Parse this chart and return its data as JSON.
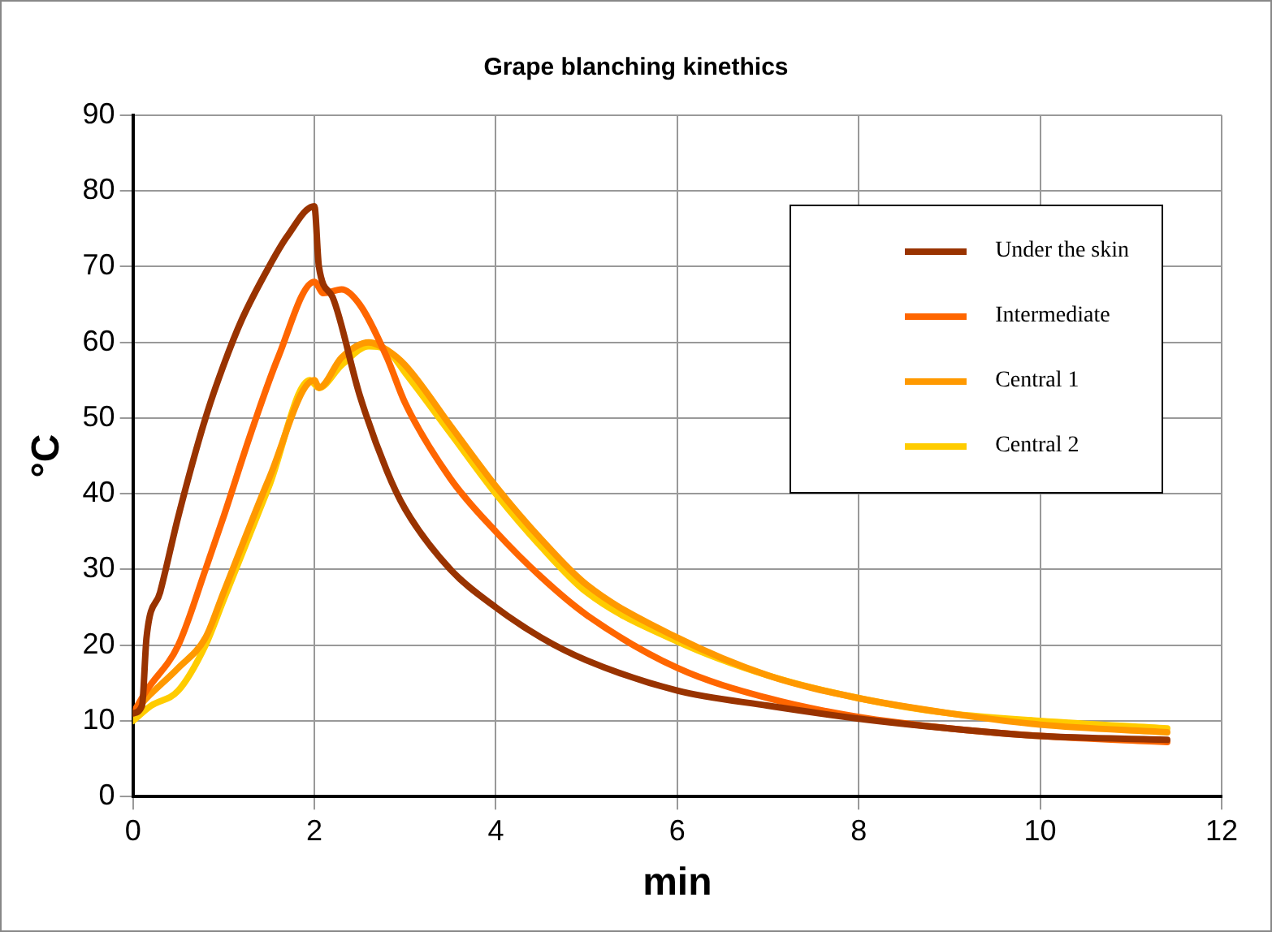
{
  "chart_data": {
    "type": "line",
    "title": "Grape blanching kinethics",
    "xlabel": "min",
    "ylabel": "°C",
    "xlim": [
      0,
      12
    ],
    "xticks": [
      0,
      2,
      4,
      6,
      8,
      10,
      12
    ],
    "ylim": [
      0,
      90
    ],
    "yticks": [
      0,
      10,
      20,
      30,
      40,
      50,
      60,
      70,
      80,
      90
    ],
    "grid": true,
    "legend": "top right",
    "marker": "none",
    "line_style": "solid",
    "series": [
      {
        "name": "Under the skin",
        "color": "#993300",
        "x": [
          0,
          0.1,
          0.15,
          0.3,
          0.5,
          0.8,
          1.0,
          1.2,
          1.5,
          1.7,
          2.0,
          2.05,
          2.2,
          2.5,
          2.8,
          3.0,
          3.5,
          4,
          4.5,
          5,
          6,
          7,
          8,
          9,
          10,
          11.4
        ],
        "values": [
          11,
          12,
          21,
          27,
          37,
          50,
          57,
          63,
          70,
          74,
          78,
          70,
          66,
          53,
          43,
          38,
          30,
          25,
          21,
          18,
          14,
          12,
          10.3,
          9,
          8,
          7.5
        ]
      },
      {
        "name": "Intermediate",
        "color": "#ff6600",
        "x": [
          0,
          0.15,
          0.5,
          0.8,
          1.0,
          1.3,
          1.6,
          2.0,
          2.1,
          2.3,
          2.5,
          2.8,
          3.0,
          3.5,
          4,
          4.5,
          5,
          6,
          7,
          8,
          9,
          10,
          11.4
        ],
        "values": [
          11,
          14,
          20,
          30,
          37,
          48,
          58,
          68,
          66.5,
          67,
          65,
          58,
          52,
          42,
          35,
          29,
          24,
          17,
          13,
          10.5,
          9,
          8,
          7.2
        ]
      },
      {
        "name": "Central 1",
        "color": "#ff9900",
        "x": [
          0,
          0.15,
          0.5,
          0.8,
          1.0,
          1.5,
          2.0,
          2.05,
          2.3,
          2.6,
          2.8,
          3.0,
          3.5,
          4,
          4.5,
          5,
          6,
          7,
          8,
          9,
          10,
          11.4
        ],
        "values": [
          11,
          13,
          17,
          21,
          27,
          42,
          55,
          54,
          58,
          60,
          59,
          57,
          49,
          41,
          34,
          28,
          21,
          16,
          13,
          11,
          9.5,
          8.5
        ]
      },
      {
        "name": "Central 2",
        "color": "#ffcc00",
        "x": [
          0,
          0.2,
          0.5,
          0.8,
          1.0,
          1.5,
          1.95,
          2.05,
          2.3,
          2.6,
          2.8,
          3.0,
          3.5,
          4,
          4.5,
          5,
          6,
          7,
          8,
          9,
          10,
          11.4
        ],
        "values": [
          10,
          12,
          14,
          20,
          26,
          41,
          55,
          54,
          57,
          59.5,
          59,
          56,
          48,
          40,
          33,
          27,
          20.5,
          16,
          13,
          11,
          10,
          9
        ]
      }
    ]
  }
}
